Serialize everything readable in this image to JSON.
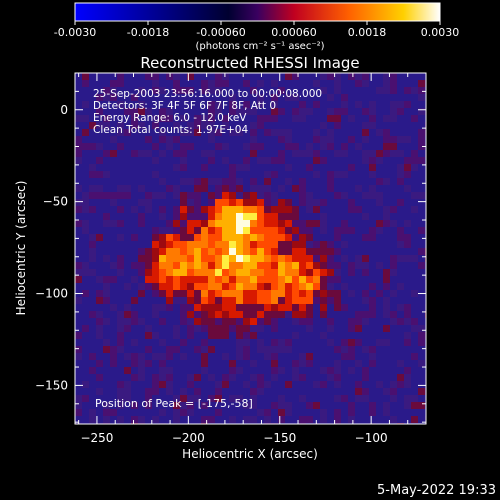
{
  "colorbar": {
    "tick_labels": [
      "-0.0030",
      "-0.0018",
      "-0.00060",
      "0.00060",
      "0.0018",
      "0.0030"
    ],
    "tick_values": [
      -0.003,
      -0.0018,
      -0.0006,
      0.0006,
      0.0018,
      0.003
    ],
    "units": "(photons cm⁻² s⁻¹ asec⁻²)",
    "range": [
      -0.003,
      0.003
    ],
    "colors": [
      "#0000ff",
      "#000000",
      "#4b0082",
      "#ff2000",
      "#ff8c00",
      "#ffff00",
      "#ffffff"
    ]
  },
  "chart_data": {
    "type": "heatmap",
    "title": "Reconstructed RHESSI Image",
    "xlabel": "Heliocentric X (arcsec)",
    "ylabel": "Heliocentric Y (arcsec)",
    "xlim": [
      -262,
      -70
    ],
    "ylim": [
      -171,
      20
    ],
    "x_ticks": [
      -250,
      -200,
      -150,
      -100
    ],
    "y_ticks": [
      0,
      -50,
      -100,
      -150
    ],
    "annotations": [
      "25-Sep-2003 23:56:16.000 to 00:00:08.000",
      "Detectors: 3F 4F 5F 6F 7F 8F, Att 0",
      "Energy Range: 6.0 - 12.0 keV",
      "Clean     Total counts: 1.97E+04"
    ],
    "peak_label": "Position of Peak = [-175,-58]",
    "peak": [
      -175,
      -58
    ],
    "grid": false
  },
  "footer": {
    "timestamp": "5-May-2022 19:33"
  }
}
